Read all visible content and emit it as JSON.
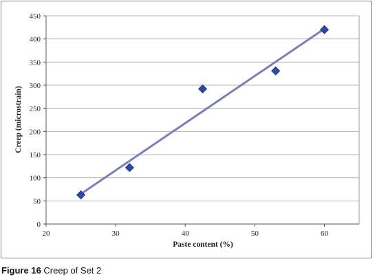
{
  "caption": {
    "label": "Figure 16",
    "text": "Creep of Set 2"
  },
  "chart_data": {
    "type": "scatter",
    "title": "",
    "xlabel": "Paste content (%)",
    "ylabel": "Creep (microstrain)",
    "xlim": [
      20,
      65
    ],
    "ylim": [
      0,
      450
    ],
    "xticks": [
      20,
      30,
      40,
      50,
      60
    ],
    "yticks": [
      0,
      50,
      100,
      150,
      200,
      250,
      300,
      350,
      400,
      450
    ],
    "grid": "horizontal",
    "legend": "none",
    "series": [
      {
        "marker": "diamond",
        "color": "#2e4a9e",
        "points": [
          {
            "x": 25,
            "y": 63
          },
          {
            "x": 32,
            "y": 122
          },
          {
            "x": 42.5,
            "y": 292
          },
          {
            "x": 53,
            "y": 331
          },
          {
            "x": 60,
            "y": 420
          }
        ]
      }
    ],
    "trendline": {
      "type": "linear",
      "color": "#7b7fb8",
      "from": {
        "x": 25,
        "y": 65
      },
      "to": {
        "x": 60,
        "y": 422
      }
    }
  }
}
